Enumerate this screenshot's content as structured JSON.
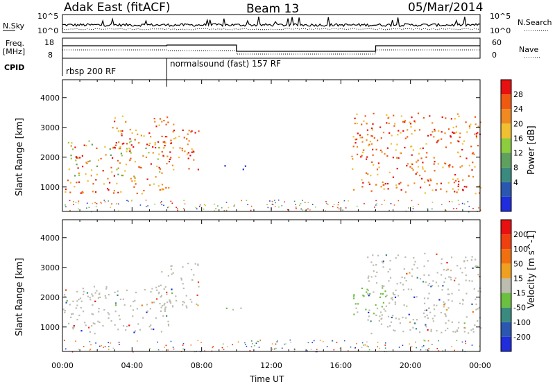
{
  "header": {
    "radar": "Adak East (fitACF)",
    "beam": "Beam 13",
    "date": "05/Mar/2014"
  },
  "top_panel": {
    "nsky_label": "N.Sky",
    "nsearch_label": "N.Search",
    "scale_top": "10^5",
    "scale_bottom": "10^0",
    "freq_label": "Freq.",
    "freq_unit": "[MHz]",
    "freq_ticks": [
      "18",
      "8"
    ],
    "nave_ticks": [
      "60",
      "0"
    ],
    "nave_label": "Nave",
    "cpid_label": "CPID",
    "cpid_segments": [
      {
        "name": "rbsp 200 RF",
        "start_h": 0,
        "end_h": 6
      },
      {
        "name": "normalsound (fast) 157 RF",
        "start_h": 6,
        "end_h": 24
      }
    ]
  },
  "chart_data": [
    {
      "type": "heatmap",
      "name": "power",
      "ylabel": "Slant Range [km]",
      "ylim": [
        180,
        4600
      ],
      "xlim": [
        0,
        24
      ],
      "yticks": [
        "1000",
        "2000",
        "3000",
        "4000"
      ],
      "colorbar": {
        "label": "Power [dB]",
        "ticks": [
          "28",
          "24",
          "20",
          "16",
          "12",
          "8",
          "4"
        ],
        "colors": [
          "#1f2ddc",
          "#2b57b0",
          "#3a8a7f",
          "#5fa05f",
          "#8ccc3f",
          "#f0c030",
          "#f08a20",
          "#f05a10",
          "#e81010"
        ]
      },
      "echo_regions": [
        {
          "t0": 0.0,
          "t1": 6.2,
          "r0": 800,
          "r1": 1300,
          "level": "high"
        },
        {
          "t0": 0.3,
          "t1": 6.0,
          "r0": 1300,
          "r1": 2600,
          "level": "mid"
        },
        {
          "t0": 2.8,
          "t1": 6.0,
          "r0": 2300,
          "r1": 3400,
          "level": "high"
        },
        {
          "t0": 5.6,
          "t1": 7.8,
          "r0": 1600,
          "r1": 3200,
          "level": "high"
        },
        {
          "t0": 9.3,
          "t1": 10.5,
          "r0": 1550,
          "r1": 1750,
          "level": "low"
        },
        {
          "t0": 16.6,
          "t1": 24.0,
          "r0": 800,
          "r1": 3500,
          "level": "high"
        }
      ]
    },
    {
      "type": "heatmap",
      "name": "velocity",
      "ylabel": "Slant Range [km]",
      "xlabel": "Time UT",
      "ylim": [
        180,
        4600
      ],
      "xlim": [
        0,
        24
      ],
      "yticks": [
        "1000",
        "2000",
        "3000",
        "4000"
      ],
      "xticks": [
        "00:00",
        "04:00",
        "08:00",
        "12:00",
        "16:00",
        "20:00",
        "00:00"
      ],
      "colorbar": {
        "label": "Velocity [m s^-1]",
        "ticks": [
          "200",
          "100",
          "50",
          "15",
          "-15",
          "-50",
          "-100",
          "-200"
        ],
        "colors": [
          "#1f2ddc",
          "#2b57b0",
          "#3a8a7f",
          "#6cc040",
          "#bcbcb0",
          "#f0a020",
          "#f07010",
          "#f04010",
          "#e81010"
        ]
      },
      "echo_regions": [
        {
          "t0": 0.0,
          "t1": 6.2,
          "r0": 800,
          "r1": 2400,
          "level": "ground"
        },
        {
          "t0": 5.6,
          "t1": 7.8,
          "r0": 1600,
          "r1": 3200,
          "level": "ground"
        },
        {
          "t0": 9.3,
          "t1": 10.5,
          "r0": 1550,
          "r1": 1750,
          "level": "green"
        },
        {
          "t0": 16.6,
          "t1": 18.6,
          "r0": 1400,
          "r1": 2400,
          "level": "green"
        },
        {
          "t0": 17.5,
          "t1": 24.0,
          "r0": 800,
          "r1": 3500,
          "level": "ground"
        }
      ]
    }
  ]
}
